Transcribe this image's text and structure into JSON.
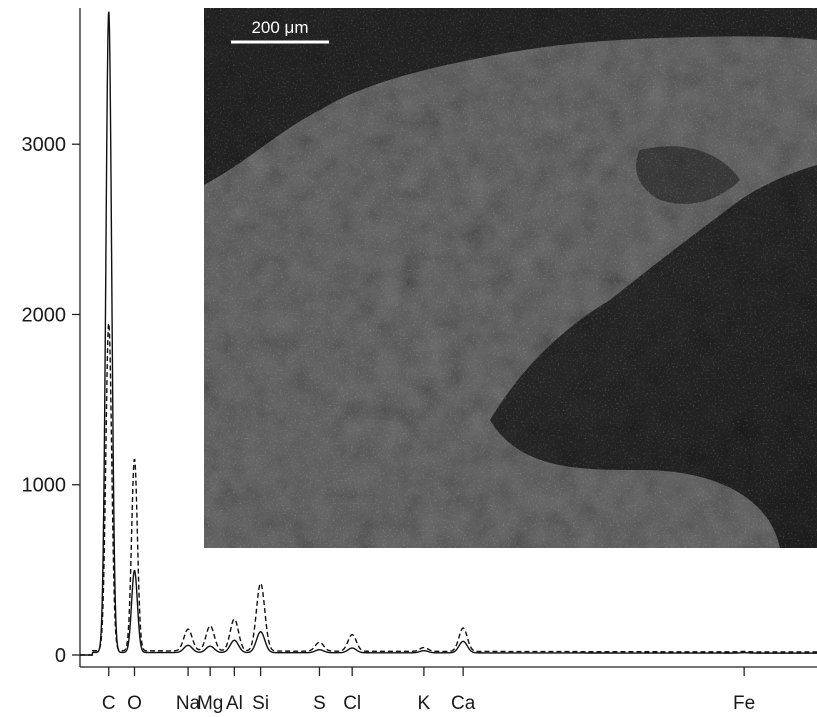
{
  "chart_data": {
    "type": "line",
    "title": "",
    "xlabel": "",
    "ylabel": "",
    "ylim": [
      0,
      3800
    ],
    "xlim": [
      0,
      7.1
    ],
    "yticks": [
      0,
      1000,
      2000,
      3000
    ],
    "ytick_labels": [
      "0",
      "1000",
      "2000",
      "3000"
    ],
    "element_labels": [
      {
        "label": "C",
        "x": 0.277
      },
      {
        "label": "O",
        "x": 0.525
      },
      {
        "label": "Na",
        "x": 1.041
      },
      {
        "label": "Mg",
        "x": 1.254
      },
      {
        "label": "Al",
        "x": 1.487
      },
      {
        "label": "Si",
        "x": 1.74
      },
      {
        "label": "S",
        "x": 2.307
      },
      {
        "label": "Cl",
        "x": 2.622
      },
      {
        "label": "K",
        "x": 3.313
      },
      {
        "label": "Ca",
        "x": 3.691
      },
      {
        "label": "Fe",
        "x": 6.398
      }
    ],
    "series": [
      {
        "style": "solid",
        "baseline": 15,
        "peaks": [
          [
            0.277,
            3780
          ],
          [
            0.525,
            490
          ],
          [
            1.041,
            50
          ],
          [
            1.254,
            45
          ],
          [
            1.487,
            80
          ],
          [
            1.74,
            130
          ],
          [
            2.307,
            25
          ],
          [
            2.622,
            35
          ],
          [
            3.313,
            20
          ],
          [
            3.691,
            75
          ],
          [
            6.398,
            10
          ]
        ]
      },
      {
        "style": "dashed",
        "baseline": 25,
        "peaks": [
          [
            0.277,
            1940
          ],
          [
            0.525,
            1140
          ],
          [
            1.041,
            140
          ],
          [
            1.254,
            160
          ],
          [
            1.487,
            200
          ],
          [
            1.74,
            410
          ],
          [
            2.307,
            65
          ],
          [
            2.622,
            110
          ],
          [
            3.313,
            35
          ],
          [
            3.691,
            150
          ],
          [
            6.398,
            15
          ]
        ]
      }
    ],
    "inset_image": {
      "type": "sem-micrograph",
      "scale_bar_label": "200 μm"
    }
  }
}
